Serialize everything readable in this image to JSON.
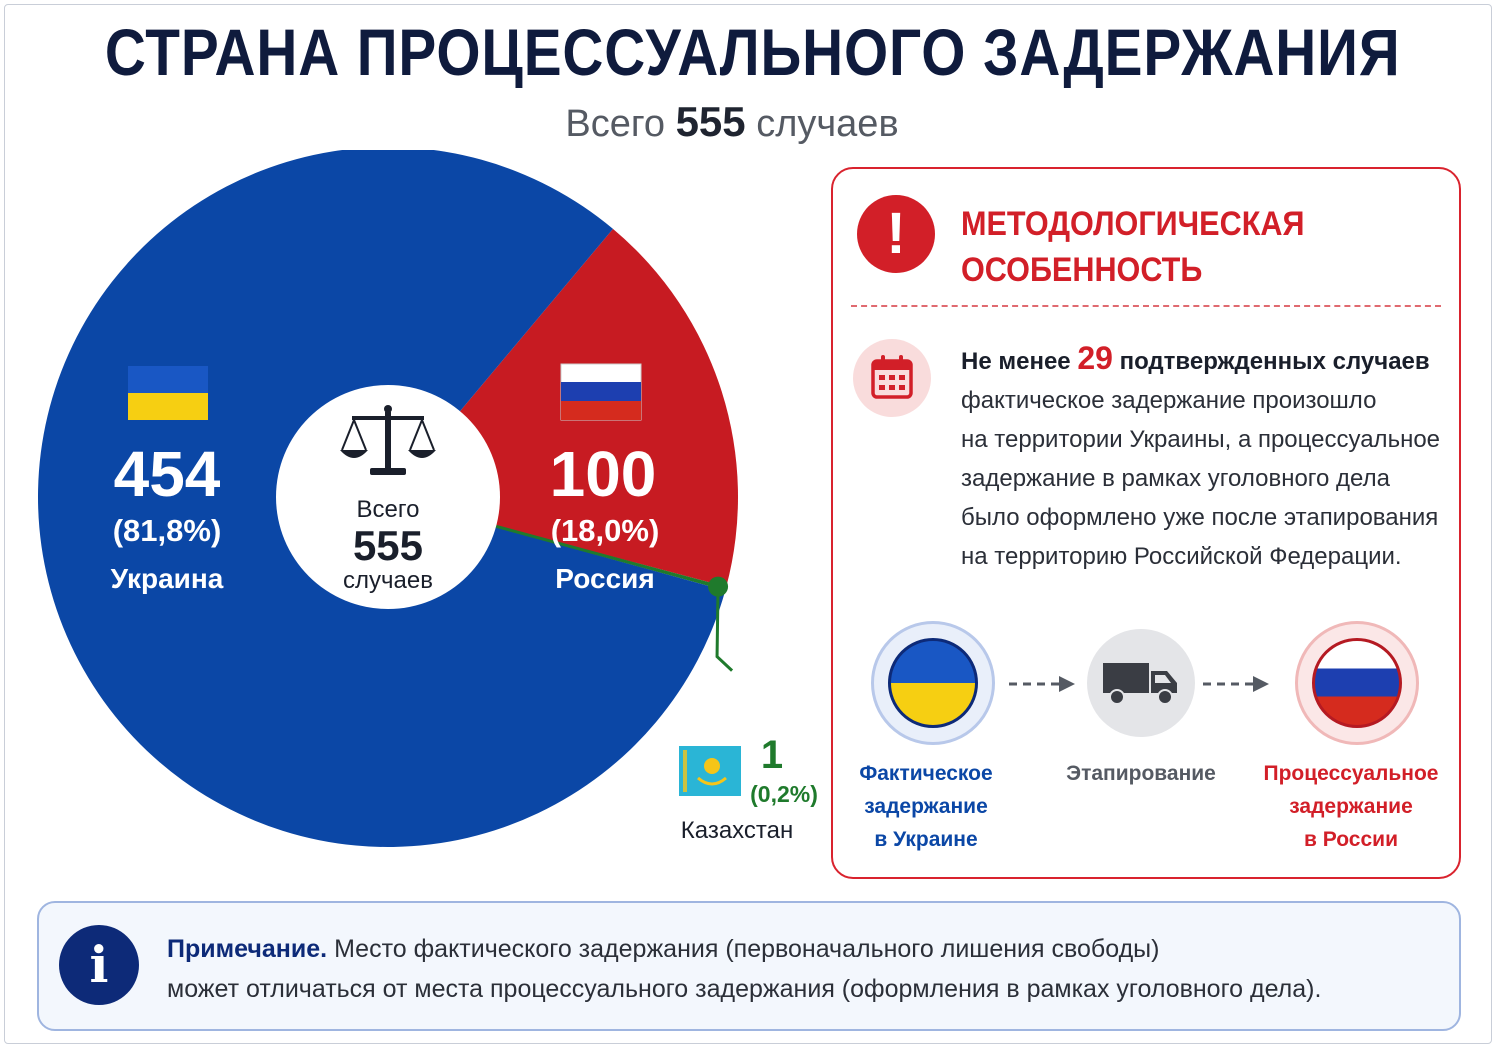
{
  "header": {
    "title": "СТРАНА ПРОЦЕССУАЛЬНОГО ЗАДЕРЖАНИЯ",
    "subtitle_prefix": "Всего",
    "subtitle_number": "555",
    "subtitle_suffix": "случаев"
  },
  "chart_data": {
    "type": "pie",
    "style": "donut",
    "total": 555,
    "center": {
      "line1": "Всего",
      "line2": "555",
      "line3": "случаев"
    },
    "slices": [
      {
        "label": "Украина",
        "value": 454,
        "value_text": "454",
        "percent_text": "(81,8%)",
        "color": "#0b47a6",
        "label_color": "#ffffff"
      },
      {
        "label": "Россия",
        "value": 100,
        "value_text": "100",
        "percent_text": "(18,0%)",
        "color": "#c71b22",
        "label_color": "#ffffff"
      },
      {
        "label": "Казахстан",
        "value": 1,
        "value_text": "1",
        "percent_text": "(0,2%)",
        "color": "#1f7a2c",
        "label_color": "#1f7a2c"
      }
    ]
  },
  "method": {
    "title_line1": "МЕТОДОЛОГИЧЕСКАЯ",
    "title_line2": "ОСОБЕННОСТЬ",
    "lead_prefix": "Не менее",
    "lead_number": "29",
    "lead_suffix": "подтвержденных случаев",
    "body_lines": [
      "фактическое задержание произошло",
      "на территории Украины, а процессуальное",
      "задержание в рамках уголовного дела",
      "было оформлено уже после этапирования",
      "на территорию Российской Федерации."
    ],
    "flow": [
      {
        "label_lines": [
          "Фактическое",
          "задержание",
          "в Украине"
        ],
        "color": "#0b47a6"
      },
      {
        "label_lines": [
          "Этапирование"
        ],
        "color": "#555a63"
      },
      {
        "label_lines": [
          "Процессуальное",
          "задержание",
          "в России"
        ],
        "color": "#d21f28"
      }
    ]
  },
  "note": {
    "label": "Примечание.",
    "line1": "Место фактического задержания (первоначального лишения свободы)",
    "line2": "может отличаться от места процессуального задержания (оформления в рамках уголовного дела)."
  },
  "icons": {
    "warning": "exclamation-icon",
    "calendar": "calendar-icon",
    "scales": "scales-of-justice-icon",
    "truck": "truck-icon",
    "info": "info-icon"
  }
}
